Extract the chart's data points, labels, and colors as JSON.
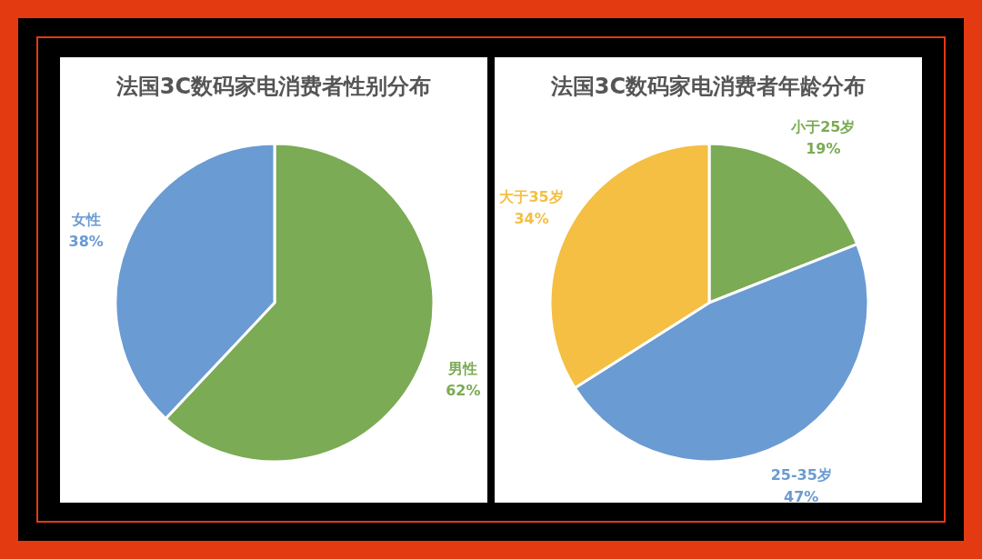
{
  "chart_data": [
    {
      "type": "pie",
      "title": "法国3C数码家电消费者性别分布",
      "categories": [
        "男性",
        "女性"
      ],
      "values": [
        62,
        38
      ],
      "colors": [
        "#7bab55",
        "#6a9bd2"
      ],
      "value_labels": [
        "62%",
        "38%"
      ]
    },
    {
      "type": "pie",
      "title": "法国3C数码家电消费者年龄分布",
      "categories": [
        "小于25岁",
        "25-35岁",
        "大于35岁"
      ],
      "values": [
        19,
        47,
        34
      ],
      "colors": [
        "#7bab55",
        "#6a9bd2",
        "#f4bf42"
      ],
      "value_labels": [
        "19%",
        "47%",
        "34%"
      ]
    }
  ]
}
